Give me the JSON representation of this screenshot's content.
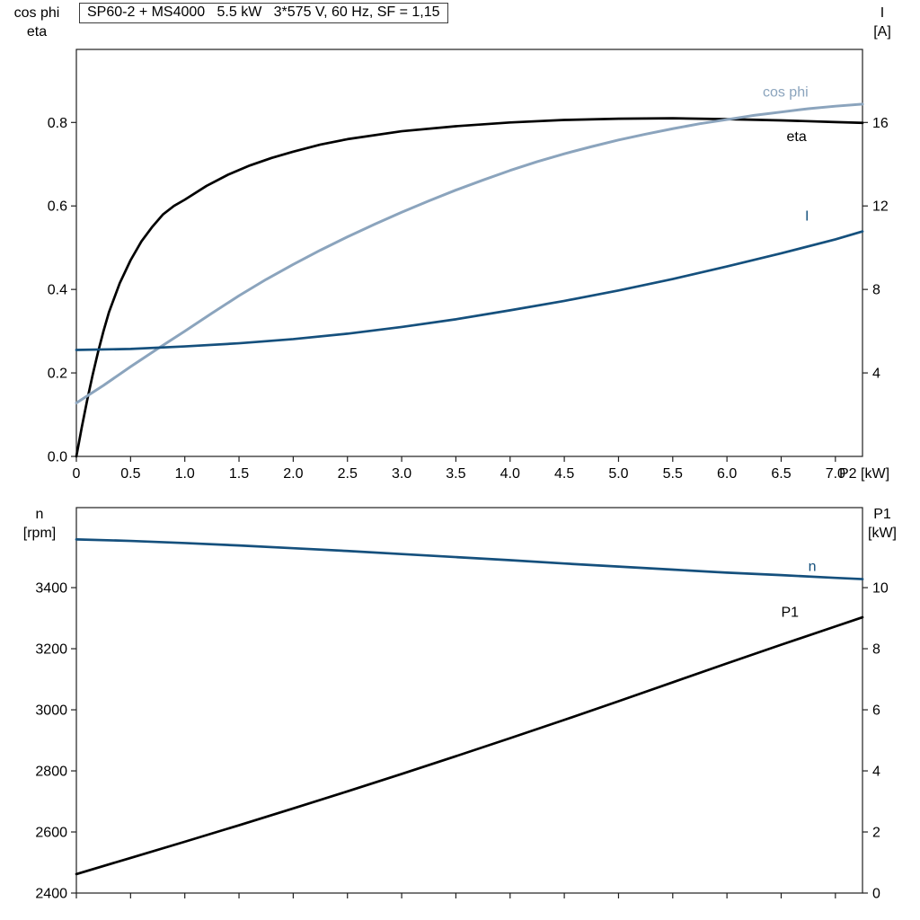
{
  "colors": {
    "black": "#000000",
    "dark_blue": "#15507d",
    "light_blue": "#8ba4bd",
    "axis": "#1f1f1f"
  },
  "chart_data": [
    {
      "type": "line",
      "title": "SP60-2 + MS4000   5.5 kW   3*575 V, 60 Hz, SF = 1,15",
      "xlabel": "P2 [kW]",
      "xlim": [
        0,
        7.25
      ],
      "x_ticks": [
        0,
        0.5,
        1,
        1.5,
        2,
        2.5,
        3,
        3.5,
        4,
        4.5,
        5,
        5.5,
        6,
        6.5,
        7
      ],
      "x_tick_labels": [
        "0",
        "0.5",
        "1.0",
        "1.5",
        "2.0",
        "2.5",
        "3.0",
        "3.5",
        "4.0",
        "4.5",
        "5.0",
        "5.5",
        "6.0",
        "6.5",
        "7.0"
      ],
      "grid": false,
      "legend": "inline-labels",
      "left_axis": {
        "title_lines": [
          "cos phi",
          "eta"
        ],
        "lim": [
          0,
          0.975
        ],
        "ticks": [
          0,
          0.2,
          0.4,
          0.6,
          0.8
        ],
        "tick_labels": [
          "0.0",
          "0.2",
          "0.4",
          "0.6",
          "0.8"
        ]
      },
      "right_axis": {
        "title_lines": [
          "I",
          "[A]"
        ],
        "lim": [
          0,
          19.5
        ],
        "ticks": [
          4,
          8,
          12,
          16
        ],
        "tick_labels": [
          "4",
          "8",
          "12",
          "16"
        ]
      },
      "series": [
        {
          "name": "eta",
          "axis": "left",
          "color": "black",
          "width": 2.7,
          "label": {
            "text": "eta",
            "x": 6.55,
            "y": 0.755
          },
          "x": [
            0,
            0.05,
            0.1,
            0.15,
            0.2,
            0.25,
            0.3,
            0.4,
            0.5,
            0.6,
            0.7,
            0.8,
            0.9,
            1.0,
            1.2,
            1.4,
            1.6,
            1.8,
            2.0,
            2.25,
            2.5,
            3.0,
            3.5,
            4.0,
            4.5,
            5.0,
            5.5,
            6.0,
            6.5,
            7.0,
            7.25
          ],
          "y": [
            0,
            0.07,
            0.135,
            0.195,
            0.25,
            0.3,
            0.345,
            0.415,
            0.47,
            0.515,
            0.55,
            0.58,
            0.6,
            0.615,
            0.648,
            0.675,
            0.697,
            0.715,
            0.73,
            0.747,
            0.76,
            0.779,
            0.791,
            0.8,
            0.806,
            0.809,
            0.81,
            0.808,
            0.805,
            0.801,
            0.799
          ]
        },
        {
          "name": "cos phi",
          "axis": "left",
          "color": "light_blue",
          "width": 3,
          "label": {
            "text": "cos phi",
            "x": 6.33,
            "y": 0.862
          },
          "x": [
            0,
            0.25,
            0.5,
            0.75,
            1.0,
            1.25,
            1.5,
            1.75,
            2.0,
            2.25,
            2.5,
            2.75,
            3.0,
            3.25,
            3.5,
            3.75,
            4.0,
            4.25,
            4.5,
            4.75,
            5.0,
            5.25,
            5.5,
            5.75,
            6.0,
            6.25,
            6.5,
            6.75,
            7.0,
            7.25
          ],
          "y": [
            0.128,
            0.17,
            0.215,
            0.258,
            0.3,
            0.343,
            0.385,
            0.424,
            0.46,
            0.494,
            0.526,
            0.556,
            0.585,
            0.612,
            0.638,
            0.662,
            0.685,
            0.706,
            0.725,
            0.742,
            0.758,
            0.772,
            0.785,
            0.797,
            0.807,
            0.817,
            0.825,
            0.833,
            0.839,
            0.844
          ]
        },
        {
          "name": "I",
          "axis": "right",
          "color": "dark_blue",
          "width": 2.7,
          "label": {
            "text": "I",
            "x": 6.72,
            "y": 11.3
          },
          "x": [
            0,
            0.5,
            1.0,
            1.5,
            2.0,
            2.5,
            3.0,
            3.5,
            4.0,
            4.5,
            5.0,
            5.5,
            6.0,
            6.5,
            7.0,
            7.25
          ],
          "y": [
            5.1,
            5.15,
            5.27,
            5.42,
            5.62,
            5.88,
            6.2,
            6.57,
            7.0,
            7.45,
            7.95,
            8.5,
            9.1,
            9.73,
            10.4,
            10.78
          ]
        }
      ]
    },
    {
      "type": "line",
      "title": "",
      "xlabel": "",
      "xlim": [
        0,
        7.25
      ],
      "x_ticks": [
        0,
        0.5,
        1,
        1.5,
        2,
        2.5,
        3,
        3.5,
        4,
        4.5,
        5,
        5.5,
        6,
        6.5,
        7
      ],
      "x_tick_labels": [],
      "grid": false,
      "legend": "inline-labels",
      "left_axis": {
        "title_lines": [
          "n",
          "[rpm]"
        ],
        "lim": [
          2400,
          3662
        ],
        "ticks": [
          2400,
          2600,
          2800,
          3000,
          3200,
          3400
        ],
        "tick_labels": [
          "2400",
          "2600",
          "2800",
          "3000",
          "3200",
          "3400"
        ]
      },
      "right_axis": {
        "title_lines": [
          "P1",
          "[kW]"
        ],
        "lim": [
          0,
          12.62
        ],
        "ticks": [
          0,
          2,
          4,
          6,
          8,
          10
        ],
        "tick_labels": [
          "0",
          "2",
          "4",
          "6",
          "8",
          "10"
        ]
      },
      "series": [
        {
          "name": "n",
          "axis": "left",
          "color": "dark_blue",
          "width": 2.7,
          "label": {
            "text": "n",
            "x": 6.75,
            "y": 3455
          },
          "x": [
            0,
            0.5,
            1,
            1.5,
            2,
            2.5,
            3,
            3.5,
            4,
            4.5,
            5,
            5.5,
            6,
            6.5,
            7,
            7.25
          ],
          "y": [
            3558,
            3553,
            3546,
            3538,
            3529,
            3520,
            3510,
            3500,
            3490,
            3479,
            3469,
            3459,
            3449,
            3441,
            3432,
            3428
          ]
        },
        {
          "name": "P1",
          "axis": "right",
          "color": "black",
          "width": 2.7,
          "label": {
            "text": "P1",
            "x": 6.5,
            "y": 9.05
          },
          "x": [
            0,
            0.5,
            1,
            1.5,
            2,
            2.5,
            3,
            3.5,
            4,
            4.5,
            5,
            5.5,
            6,
            6.5,
            7,
            7.25
          ],
          "y": [
            0.62,
            1.15,
            1.68,
            2.22,
            2.77,
            3.33,
            3.9,
            4.48,
            5.07,
            5.67,
            6.28,
            6.9,
            7.52,
            8.13,
            8.73,
            9.03
          ]
        }
      ]
    }
  ]
}
